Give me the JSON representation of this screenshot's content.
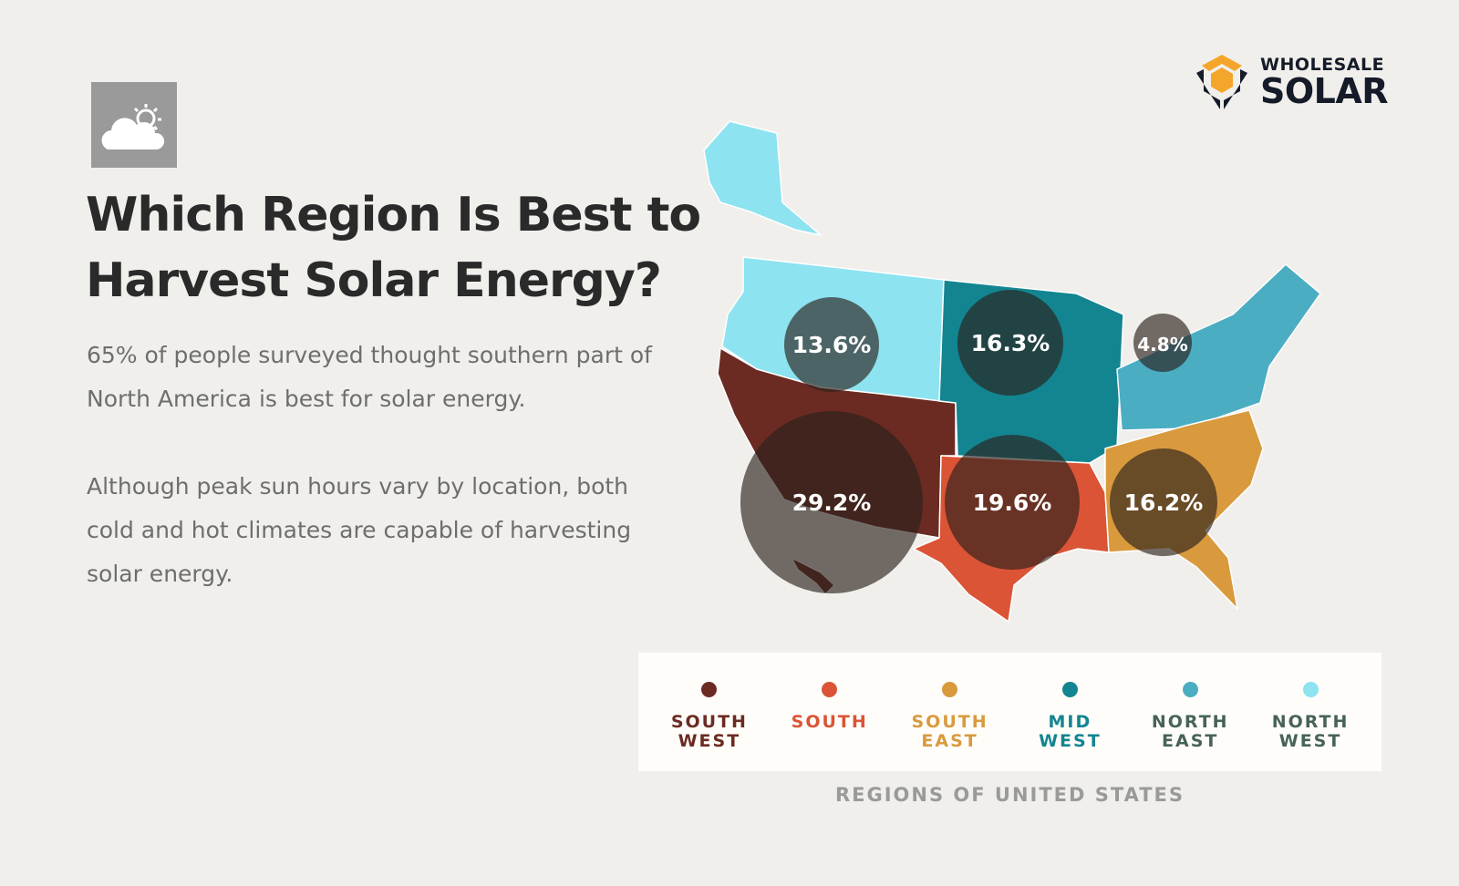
{
  "header": {
    "title": "Which Region Is Best to Harvest Solar Energy?",
    "paragraph_1": "65% of people surveyed thought southern part of North America is best for solar energy.",
    "paragraph_2": "Although peak sun hours vary by location, both cold and hot climates are capable of harvesting solar energy.",
    "icon": "partly-cloudy-icon"
  },
  "logo": {
    "line1": "WHOLESALE",
    "line2": "SOLAR",
    "colors": {
      "hex": "#f4a62a",
      "text": "#151b28"
    }
  },
  "map_data": {
    "regions": [
      {
        "id": "south-west",
        "label": "SOUTH\nWEST",
        "color": "#6b2b22",
        "text_color": "#6b2b22",
        "value": "29.2%"
      },
      {
        "id": "south",
        "label": "SOUTH",
        "color": "#db5436",
        "text_color": "#db5436",
        "value": "19.6%"
      },
      {
        "id": "south-east",
        "label": "SOUTH\nEAST",
        "color": "#d99a3e",
        "text_color": "#d99a3e",
        "value": "16.2%"
      },
      {
        "id": "mid-west",
        "label": "MID\nWEST",
        "color": "#138591",
        "text_color": "#138591",
        "value": "16.3%"
      },
      {
        "id": "north-east",
        "label": "NORTH\nEAST",
        "color": "#4badc2",
        "text_color": "#476357",
        "value": "4.8%"
      },
      {
        "id": "north-west",
        "label": "NORTH\nWEST",
        "color": "#8de3f0",
        "text_color": "#476357",
        "value": "13.6%"
      }
    ],
    "bubble_color": "#2b201b"
  },
  "legend": {
    "caption": "REGIONS OF UNITED STATES"
  }
}
